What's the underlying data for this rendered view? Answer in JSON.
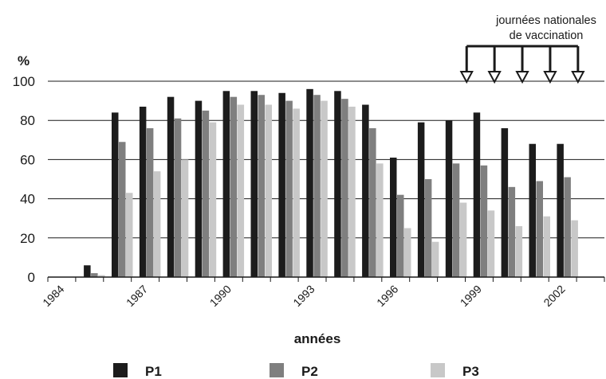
{
  "chart_data": {
    "type": "bar",
    "ylabel": "%",
    "xlabel": "années",
    "ylim": [
      0,
      100
    ],
    "yticks": [
      0,
      20,
      40,
      60,
      80,
      100
    ],
    "grid": true,
    "years": [
      1984,
      1985,
      1986,
      1987,
      1988,
      1989,
      1990,
      1991,
      1992,
      1993,
      1994,
      1995,
      1996,
      1997,
      1998,
      1999,
      2000,
      2001,
      2002,
      2003
    ],
    "xtick_labels": [
      "1984",
      "1987",
      "1990",
      "1993",
      "1996",
      "1999",
      "2002"
    ],
    "series": [
      {
        "name": "P1",
        "color": "#1c1c1c",
        "values": [
          0,
          6,
          84,
          87,
          92,
          90,
          95,
          95,
          94,
          96,
          95,
          88,
          61,
          79,
          80,
          84,
          76,
          68,
          68,
          0
        ]
      },
      {
        "name": "P2",
        "color": "#7f7f7f",
        "values": [
          0,
          2,
          69,
          76,
          81,
          85,
          92,
          93,
          90,
          93,
          91,
          76,
          42,
          50,
          58,
          57,
          46,
          49,
          51,
          0
        ]
      },
      {
        "name": "P3",
        "color": "#c8c8c8",
        "values": [
          0,
          1,
          43,
          54,
          60,
          79,
          88,
          88,
          86,
          90,
          87,
          58,
          25,
          18,
          38,
          34,
          26,
          31,
          29,
          0
        ]
      }
    ],
    "annotation": {
      "text_line1": "journées nationales",
      "text_line2": "de vaccination",
      "arrow_years": [
        1999,
        2000,
        2001,
        2002,
        2003
      ]
    },
    "legend_position": "bottom"
  }
}
